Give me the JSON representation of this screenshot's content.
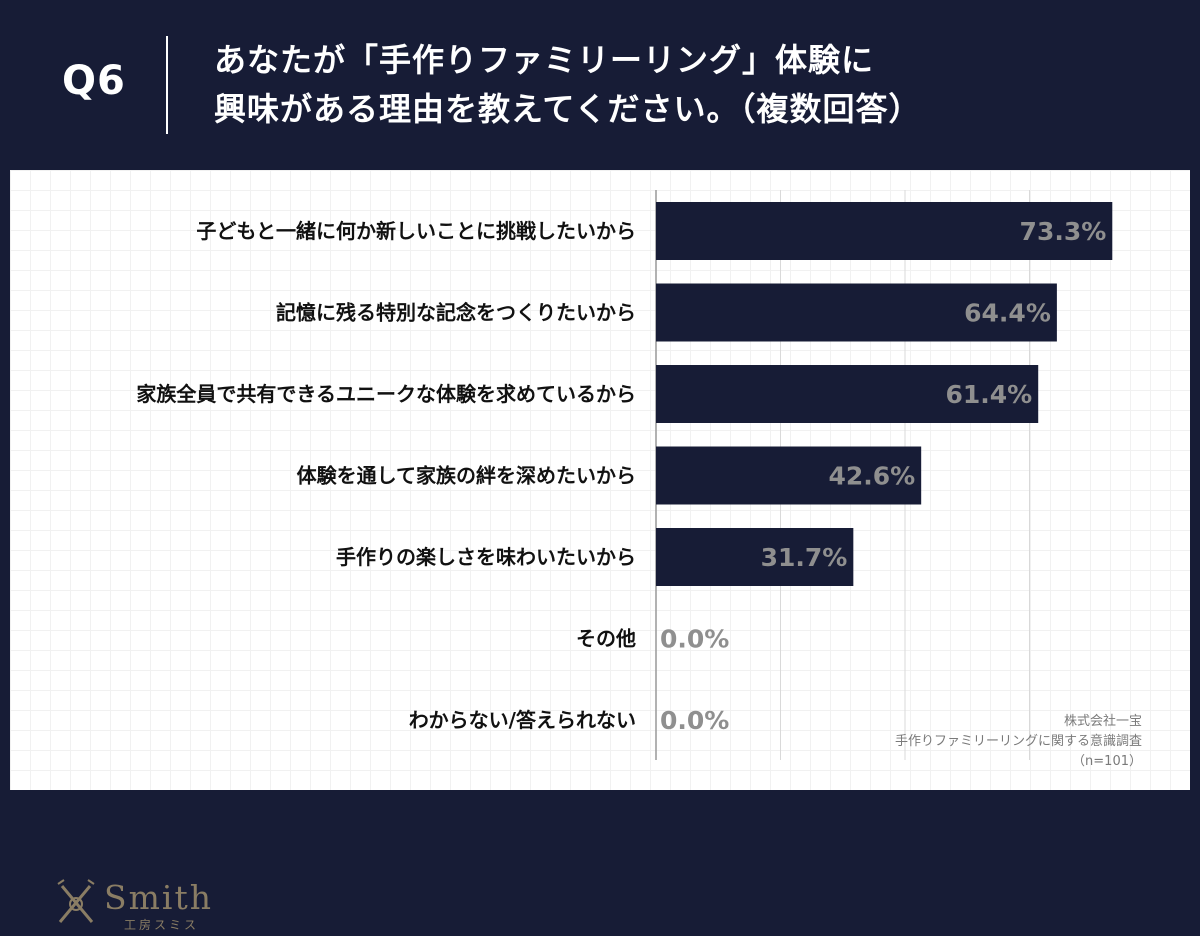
{
  "header": {
    "question_number": "Q6",
    "title_line1": "あなたが「手作りファミリーリング」体験に",
    "title_line2": "興味がある理由を教えてください。（複数回答）"
  },
  "chart_data": {
    "type": "bar",
    "orientation": "horizontal",
    "categories": [
      "子どもと一緒に何か新しいことに挑戦したいから",
      "記憶に残る特別な記念をつくりたいから",
      "家族全員で共有できるユニークな体験を求めているから",
      "体験を通して家族の絆を深めたいから",
      "手作りの楽しさを味わいたいから",
      "その他",
      "わからない/答えられない"
    ],
    "values": [
      73.3,
      64.4,
      61.4,
      42.6,
      31.7,
      0.0,
      0.0
    ],
    "value_labels": [
      "73.3%",
      "64.4%",
      "61.4%",
      "42.6%",
      "31.7%",
      "0.0%",
      "0.0%"
    ],
    "xlim": [
      0,
      80
    ],
    "unit": "%",
    "bar_color": "#171c36",
    "gridlines": true
  },
  "footer": {
    "company": "株式会社一宝",
    "survey": "手作りファミリーリングに関する意識調査",
    "sample": "（n=101）"
  },
  "logo": {
    "wordmark": "Smith",
    "subtext": "工房スミス",
    "icon": "jewelry-tools-icon"
  },
  "colors": {
    "background": "#171c36",
    "panel": "#ffffff",
    "value_text": "#8f8f8f",
    "logo": "#8a7d64"
  }
}
